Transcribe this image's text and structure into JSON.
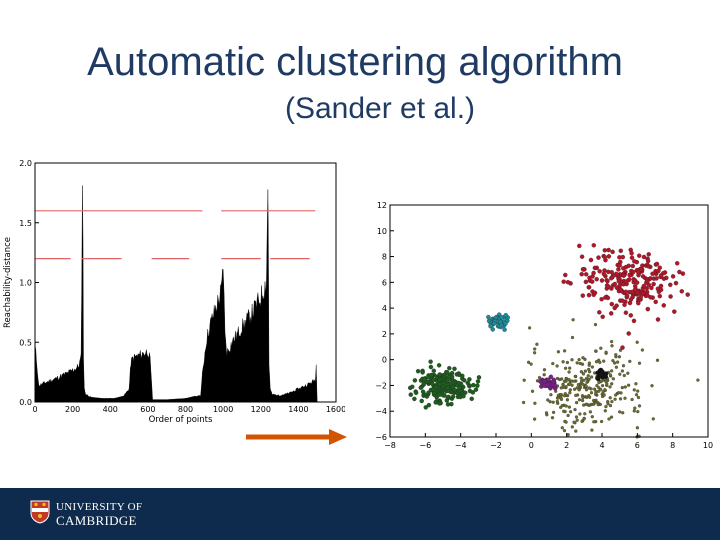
{
  "slide": {
    "title": "Automatic clustering algorithm",
    "subtitle": "(Sander et al.)"
  },
  "footer": {
    "line1": "UNIVERSITY OF",
    "line2": "CAMBRIDGE",
    "background": "#0e2a4d"
  },
  "arrow": {
    "color": "#d35400"
  },
  "chart_data": [
    {
      "type": "area",
      "xlabel": "Order of points",
      "ylabel": "Reachability-distance",
      "xlim": [
        0,
        1600
      ],
      "ylim": [
        0,
        2.0
      ],
      "xticks": [
        0,
        200,
        400,
        600,
        800,
        1000,
        1200,
        1400,
        1600
      ],
      "yticks": [
        0.0,
        0.5,
        1.0,
        1.5,
        2.0
      ],
      "xtick_labels": [
        "0",
        "200",
        "400",
        "600",
        "800",
        "1000",
        "1200",
        "1400",
        "1600"
      ],
      "ytick_labels": [
        "0.0",
        "0.5",
        "1.0",
        "1.5",
        "2.0"
      ],
      "fill_color": "#000000",
      "line_color": "#e06666",
      "profile": {
        "x": [
          0,
          8,
          20,
          60,
          120,
          180,
          230,
          245,
          252,
          255,
          258,
          262,
          270,
          300,
          360,
          420,
          470,
          500,
          510,
          520,
          560,
          600,
          612,
          625,
          645,
          700,
          800,
          880,
          890,
          900,
          910,
          930,
          960,
          990,
          1000,
          1005,
          1010,
          1020,
          1050,
          1100,
          1150,
          1200,
          1230,
          1238,
          1240,
          1244,
          1250,
          1260,
          1300,
          1350,
          1400,
          1450,
          1490,
          1495,
          1500
        ],
        "y": [
          0.5,
          0.38,
          0.15,
          0.18,
          0.22,
          0.27,
          0.32,
          0.4,
          1.88,
          1.6,
          0.4,
          0.12,
          0.07,
          0.04,
          0.03,
          0.03,
          0.05,
          0.12,
          0.36,
          0.4,
          0.43,
          0.46,
          0.38,
          0.02,
          0.02,
          0.02,
          0.03,
          0.06,
          0.25,
          0.4,
          0.55,
          0.7,
          0.85,
          1.0,
          1.2,
          1.05,
          0.6,
          0.45,
          0.55,
          0.68,
          0.8,
          0.95,
          1.1,
          1.93,
          1.6,
          0.35,
          0.12,
          0.07,
          0.06,
          0.08,
          0.12,
          0.16,
          0.2,
          0.34,
          0.0
        ]
      },
      "threshold_segments": [
        {
          "y": 1.6,
          "x": [
            0,
            890
          ]
        },
        {
          "y": 1.6,
          "x": [
            990,
            1490
          ]
        },
        {
          "y": 1.2,
          "x": [
            0,
            190
          ]
        },
        {
          "y": 1.2,
          "x": [
            250,
            460
          ]
        },
        {
          "y": 1.2,
          "x": [
            620,
            820
          ]
        },
        {
          "y": 1.2,
          "x": [
            990,
            1200
          ]
        },
        {
          "y": 1.2,
          "x": [
            1250,
            1460
          ]
        }
      ]
    },
    {
      "type": "scatter",
      "xlim": [
        -8,
        10
      ],
      "ylim": [
        -6,
        12
      ],
      "xticks": [
        -8,
        -6,
        -4,
        -2,
        0,
        2,
        4,
        6,
        8,
        10
      ],
      "yticks": [
        -6,
        -4,
        -2,
        0,
        2,
        4,
        6,
        8,
        10,
        12
      ],
      "xtick_labels": [
        "−8",
        "−6",
        "−4",
        "−2",
        "0",
        "2",
        "4",
        "6",
        "8",
        "10"
      ],
      "ytick_labels": [
        "−6",
        "−4",
        "−2",
        "0",
        "2",
        "4",
        "6",
        "8",
        "10",
        "12"
      ],
      "clusters": [
        {
          "color": "#b0182a",
          "center": [
            5.5,
            6.0
          ],
          "spread": [
            1.5,
            1.25
          ],
          "n": 240
        },
        {
          "color": "#1f5c1f",
          "center": [
            -5.0,
            -2.0
          ],
          "spread": [
            0.75,
            0.65
          ],
          "n": 210
        },
        {
          "color": "#1f8a9a",
          "center": [
            -1.9,
            3.0
          ],
          "spread": [
            0.25,
            0.25
          ],
          "n": 55
        },
        {
          "color": "#7a2087",
          "center": [
            1.0,
            -1.9
          ],
          "spread": [
            0.22,
            0.22
          ],
          "n": 35
        },
        {
          "color": "#111111",
          "center": [
            4.0,
            -1.1
          ],
          "spread": [
            0.17,
            0.17
          ],
          "n": 25
        },
        {
          "color": "#6b6b32",
          "center": [
            3.2,
            -2.2
          ],
          "spread": [
            1.6,
            1.6
          ],
          "n": 300
        }
      ]
    }
  ]
}
